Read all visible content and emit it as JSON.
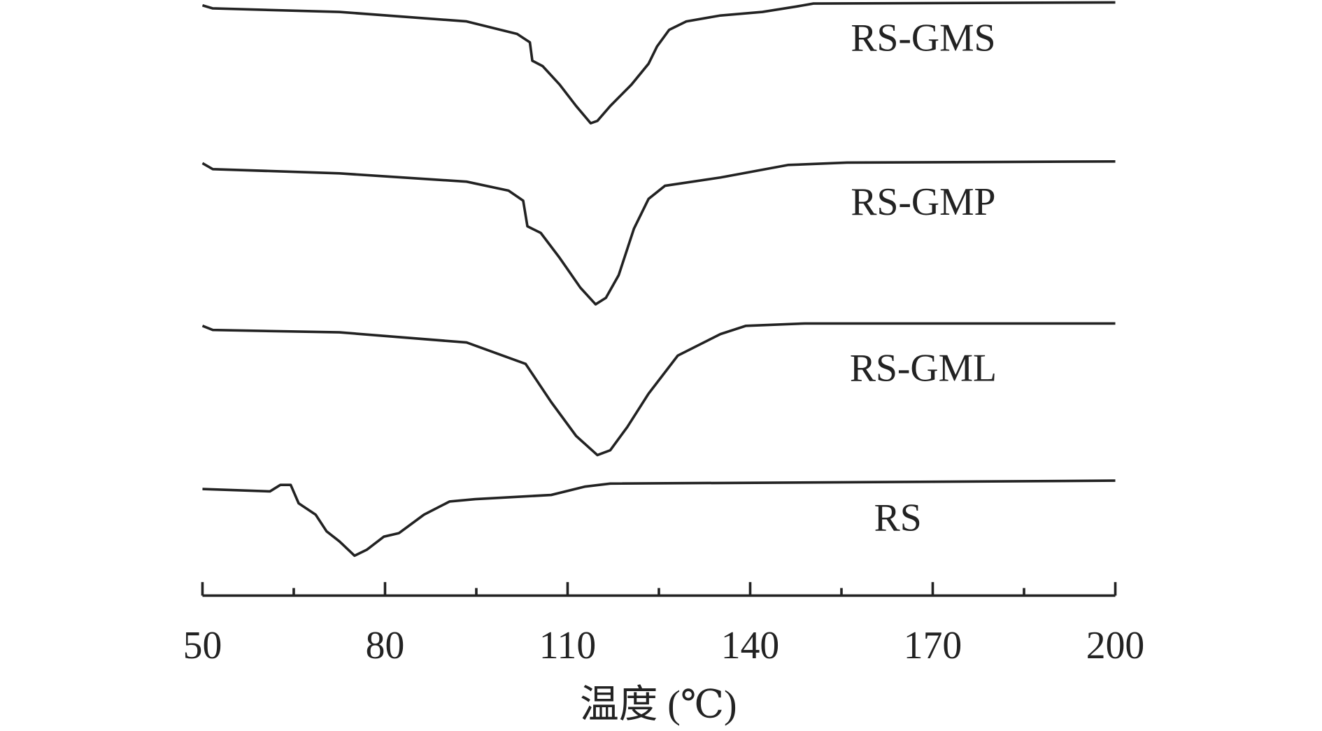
{
  "chart_data": {
    "type": "line",
    "x_label": "温度 (℃)",
    "xlim": [
      50,
      200
    ],
    "xticks": [
      50,
      80,
      110,
      140,
      170,
      200
    ],
    "xminorticks": [
      65,
      95,
      125,
      155,
      185
    ],
    "ylim": [
      0,
      100
    ],
    "color": "#222222",
    "series": [
      {
        "name": "RS-GMS",
        "x": [
          50,
          51.7,
          72.5,
          93.4,
          101.7,
          103.8,
          104.2,
          105.9,
          108.7,
          111.4,
          113.8,
          114.9,
          117.0,
          120.5,
          123.3,
          124.7,
          126.7,
          129.5,
          135.1,
          142.0,
          147.6,
          150.4,
          200
        ],
        "values": [
          99.1,
          98.6,
          98.0,
          96.4,
          94.3,
          92.9,
          89.8,
          88.9,
          85.8,
          82.2,
          79.3,
          79.7,
          82.2,
          85.8,
          89.3,
          92.2,
          95.0,
          96.4,
          97.4,
          98.0,
          98.9,
          99.4,
          99.6
        ]
      },
      {
        "name": "RS-GMP",
        "x": [
          50,
          51.7,
          72.5,
          93.4,
          100.3,
          102.7,
          103.4,
          105.6,
          108.7,
          112.1,
          114.6,
          116.3,
          118.4,
          120.9,
          123.3,
          126.0,
          135.1,
          146.2,
          155.9,
          200
        ],
        "values": [
          72.6,
          71.6,
          70.9,
          69.5,
          68.0,
          66.3,
          62.0,
          60.9,
          56.7,
          51.7,
          48.9,
          50.0,
          53.8,
          61.6,
          66.6,
          68.8,
          70.2,
          72.3,
          72.7,
          72.9
        ]
      },
      {
        "name": "RS-GML",
        "x": [
          50,
          51.7,
          72.5,
          93.4,
          103.1,
          107.3,
          111.4,
          114.9,
          117.0,
          119.8,
          123.3,
          128.1,
          135.1,
          139.3,
          149.0,
          200
        ],
        "values": [
          45.3,
          44.6,
          44.2,
          42.5,
          38.9,
          32.5,
          26.8,
          23.6,
          24.4,
          28.3,
          33.9,
          40.3,
          43.9,
          45.3,
          45.7,
          45.7
        ]
      },
      {
        "name": "RS",
        "x": [
          50,
          61.1,
          62.8,
          64.5,
          65.8,
          68.6,
          70.4,
          72.5,
          75.0,
          77.0,
          79.8,
          82.3,
          86.4,
          90.6,
          94.8,
          107.3,
          112.8,
          117.0,
          200
        ],
        "values": [
          17.9,
          17.5,
          18.6,
          18.6,
          15.5,
          13.6,
          10.8,
          9.1,
          6.7,
          7.7,
          9.9,
          10.5,
          13.6,
          15.8,
          16.2,
          16.9,
          18.3,
          18.8,
          19.3
        ]
      }
    ]
  }
}
